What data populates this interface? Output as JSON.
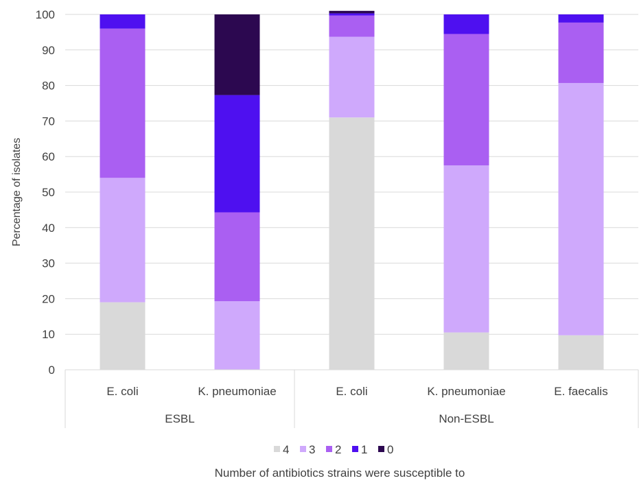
{
  "chart_data": {
    "type": "bar",
    "stacked": true,
    "ylabel": "Percentage of isolates",
    "xlabel": "Number of antibiotics strains were susceptible to",
    "ylim": [
      0,
      100
    ],
    "yticks": [
      0,
      10,
      20,
      30,
      40,
      50,
      60,
      70,
      80,
      90,
      100
    ],
    "grid": true,
    "legend_position": "bottom",
    "categories": [
      "E. coli",
      "K. pneumoniae",
      "E. coli",
      "K. pneumoniae",
      "E. faecalis"
    ],
    "groups": [
      {
        "label": "ESBL",
        "categories": [
          0,
          1
        ]
      },
      {
        "label": "Non-ESBL",
        "categories": [
          2,
          3,
          4
        ]
      }
    ],
    "series": [
      {
        "name": "4",
        "color": "#d9d9d9",
        "values": [
          19,
          0,
          71,
          10.5,
          9.7
        ]
      },
      {
        "name": "3",
        "color": "#cfa9fc",
        "values": [
          35,
          19.3,
          22.7,
          47,
          71
        ]
      },
      {
        "name": "2",
        "color": "#aa5ff2",
        "values": [
          42,
          25,
          6,
          37,
          17
        ]
      },
      {
        "name": "1",
        "color": "#4e10f0",
        "values": [
          4,
          33,
          0.6,
          5.5,
          2.3
        ]
      },
      {
        "name": "0",
        "color": "#2c0850",
        "values": [
          0,
          22.7,
          0.7,
          0,
          0
        ]
      }
    ]
  }
}
